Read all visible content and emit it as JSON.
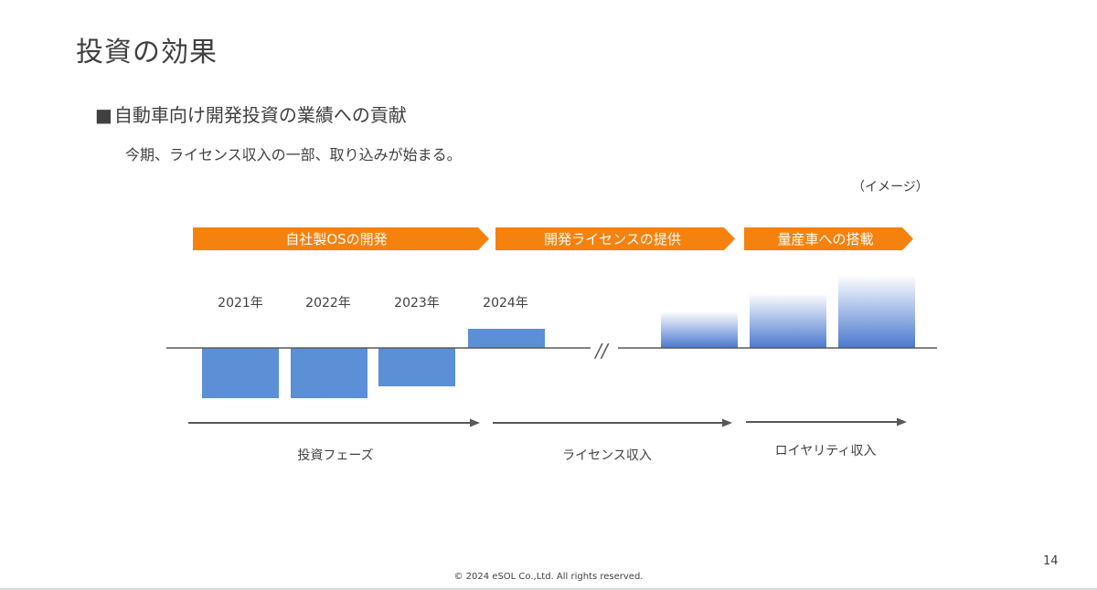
{
  "slide": {
    "title": "投資の効果",
    "bullet_marker": "■",
    "bullet_text": "自動車向け開発投資の業績への貢献",
    "subtext": "今期、ライセンス収入の一部、取り込みが始まる。",
    "image_note": "（イメージ）",
    "footer": "© 2024 eSOL Co.,Ltd. All rights reserved.",
    "page_number": "14"
  },
  "colors": {
    "phase_arrow": "#f5820f",
    "bar": "#5b8fd6",
    "royalty_bar": "#4a78cf",
    "axis_line": "#595959",
    "text": "#404040"
  },
  "chart_data": {
    "type": "bar",
    "title": "",
    "phases": [
      {
        "name": "phase-own-os-development",
        "label": "自社製OSの開発"
      },
      {
        "name": "phase-development-license",
        "label": "開発ライセンスの提供"
      },
      {
        "name": "phase-mass-production",
        "label": "量産車への搭載"
      }
    ],
    "year_labels": [
      "2021年",
      "2022年",
      "2023年",
      "2024年"
    ],
    "axis_break": "//",
    "series": [
      {
        "name": "investment-and-license",
        "categories": [
          "2021年",
          "2022年",
          "2023年",
          "2024年"
        ],
        "values": [
          -55,
          -55,
          -42,
          21
        ]
      },
      {
        "name": "royalty-revenue",
        "categories": [
          "",
          "",
          ""
        ],
        "values": [
          40,
          60,
          80
        ]
      }
    ],
    "arrow_labels": [
      "投資フェーズ",
      "ライセンス収入",
      "ロイヤリティ収入"
    ],
    "ylim": [
      -60,
      85
    ],
    "note": "illustrative image, no numeric axis shown"
  }
}
